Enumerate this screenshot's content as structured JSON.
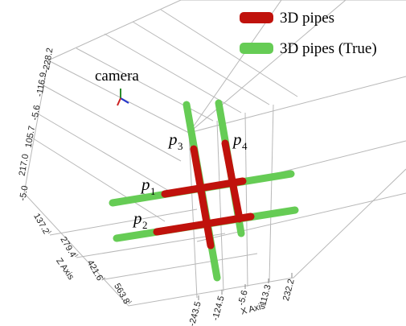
{
  "chart_data": {
    "type": "pipes3d",
    "series": [
      {
        "name": "3D pipes",
        "color": "#c0120c"
      },
      {
        "name": "3D pipes (True)",
        "color": "#66cc55"
      }
    ],
    "annotations": [
      {
        "text": "camera"
      },
      {
        "text": "p",
        "sub": "1"
      },
      {
        "text": "p",
        "sub": "2"
      },
      {
        "text": "p",
        "sub": "3"
      },
      {
        "text": "p",
        "sub": "4"
      }
    ],
    "xlabel": "X Axis",
    "xlim": [
      -243.5,
      232.2
    ],
    "xticks": [
      -243.5,
      -124.5,
      -5.6,
      113.3,
      232.2
    ],
    "zlabel": "Z Axis",
    "zlim": [
      137.2,
      563.8
    ],
    "zticks": [
      137.2,
      279.4,
      421.6,
      563.8
    ],
    "yticks": [
      {
        "value": -5,
        "label": "-5.0"
      },
      {
        "value": 217,
        "label": "217.0"
      },
      105.7,
      -5.6,
      -116.9,
      -228.2
    ]
  }
}
